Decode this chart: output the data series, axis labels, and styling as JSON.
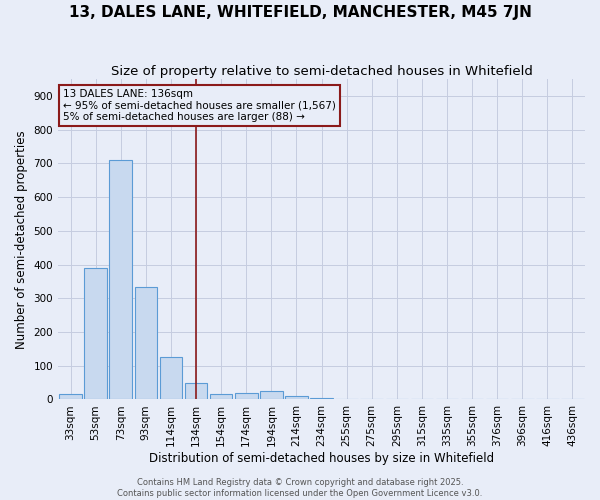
{
  "title": "13, DALES LANE, WHITEFIELD, MANCHESTER, M45 7JN",
  "subtitle": "Size of property relative to semi-detached houses in Whitefield",
  "xlabel": "Distribution of semi-detached houses by size in Whitefield",
  "ylabel": "Number of semi-detached properties",
  "categories": [
    "33sqm",
    "53sqm",
    "73sqm",
    "93sqm",
    "114sqm",
    "134sqm",
    "154sqm",
    "174sqm",
    "194sqm",
    "214sqm",
    "234sqm",
    "255sqm",
    "275sqm",
    "295sqm",
    "315sqm",
    "335sqm",
    "355sqm",
    "376sqm",
    "396sqm",
    "416sqm",
    "436sqm"
  ],
  "values": [
    15,
    390,
    710,
    335,
    125,
    50,
    15,
    20,
    25,
    10,
    5,
    0,
    0,
    0,
    0,
    0,
    0,
    0,
    0,
    0,
    0
  ],
  "bar_color": "#c8d9ef",
  "bar_edge_color": "#5b9bd5",
  "background_color": "#e8edf8",
  "grid_color": "#c5cce0",
  "vline_index": 5,
  "vline_color": "#8b1a1a",
  "annotation_text": "13 DALES LANE: 136sqm\n← 95% of semi-detached houses are smaller (1,567)\n5% of semi-detached houses are larger (88) →",
  "annotation_box_color": "#8b1a1a",
  "ylim": [
    0,
    950
  ],
  "yticks": [
    0,
    100,
    200,
    300,
    400,
    500,
    600,
    700,
    800,
    900
  ],
  "footer": "Contains HM Land Registry data © Crown copyright and database right 2025.\nContains public sector information licensed under the Open Government Licence v3.0.",
  "title_fontsize": 11,
  "subtitle_fontsize": 9.5,
  "label_fontsize": 8.5,
  "tick_fontsize": 7.5,
  "annotation_fontsize": 7.5
}
